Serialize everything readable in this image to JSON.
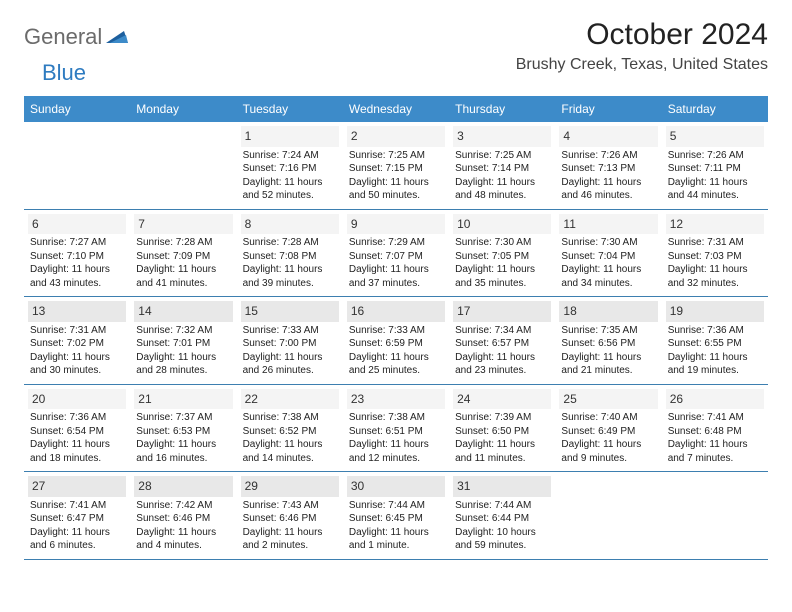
{
  "logo": {
    "text1": "General",
    "text2": "Blue"
  },
  "title": "October 2024",
  "location": "Brushy Creek, Texas, United States",
  "colors": {
    "headerBg": "#3d8bc9",
    "headerText": "#ffffff",
    "rowBorder": "#3d7fb0",
    "dayBg": "#f4f4f4",
    "dayBgAlt": "#e8e8e8",
    "logoGray": "#6b6b6b",
    "logoBlue": "#2e7bc0"
  },
  "dayNames": [
    "Sunday",
    "Monday",
    "Tuesday",
    "Wednesday",
    "Thursday",
    "Friday",
    "Saturday"
  ],
  "weeks": [
    [
      {
        "n": "",
        "sr": "",
        "ss": "",
        "dl": ""
      },
      {
        "n": "",
        "sr": "",
        "ss": "",
        "dl": ""
      },
      {
        "n": "1",
        "sr": "Sunrise: 7:24 AM",
        "ss": "Sunset: 7:16 PM",
        "dl": "Daylight: 11 hours and 52 minutes."
      },
      {
        "n": "2",
        "sr": "Sunrise: 7:25 AM",
        "ss": "Sunset: 7:15 PM",
        "dl": "Daylight: 11 hours and 50 minutes."
      },
      {
        "n": "3",
        "sr": "Sunrise: 7:25 AM",
        "ss": "Sunset: 7:14 PM",
        "dl": "Daylight: 11 hours and 48 minutes."
      },
      {
        "n": "4",
        "sr": "Sunrise: 7:26 AM",
        "ss": "Sunset: 7:13 PM",
        "dl": "Daylight: 11 hours and 46 minutes."
      },
      {
        "n": "5",
        "sr": "Sunrise: 7:26 AM",
        "ss": "Sunset: 7:11 PM",
        "dl": "Daylight: 11 hours and 44 minutes."
      }
    ],
    [
      {
        "n": "6",
        "sr": "Sunrise: 7:27 AM",
        "ss": "Sunset: 7:10 PM",
        "dl": "Daylight: 11 hours and 43 minutes."
      },
      {
        "n": "7",
        "sr": "Sunrise: 7:28 AM",
        "ss": "Sunset: 7:09 PM",
        "dl": "Daylight: 11 hours and 41 minutes."
      },
      {
        "n": "8",
        "sr": "Sunrise: 7:28 AM",
        "ss": "Sunset: 7:08 PM",
        "dl": "Daylight: 11 hours and 39 minutes."
      },
      {
        "n": "9",
        "sr": "Sunrise: 7:29 AM",
        "ss": "Sunset: 7:07 PM",
        "dl": "Daylight: 11 hours and 37 minutes."
      },
      {
        "n": "10",
        "sr": "Sunrise: 7:30 AM",
        "ss": "Sunset: 7:05 PM",
        "dl": "Daylight: 11 hours and 35 minutes."
      },
      {
        "n": "11",
        "sr": "Sunrise: 7:30 AM",
        "ss": "Sunset: 7:04 PM",
        "dl": "Daylight: 11 hours and 34 minutes."
      },
      {
        "n": "12",
        "sr": "Sunrise: 7:31 AM",
        "ss": "Sunset: 7:03 PM",
        "dl": "Daylight: 11 hours and 32 minutes."
      }
    ],
    [
      {
        "n": "13",
        "sr": "Sunrise: 7:31 AM",
        "ss": "Sunset: 7:02 PM",
        "dl": "Daylight: 11 hours and 30 minutes.",
        "shade": true
      },
      {
        "n": "14",
        "sr": "Sunrise: 7:32 AM",
        "ss": "Sunset: 7:01 PM",
        "dl": "Daylight: 11 hours and 28 minutes.",
        "shade": true
      },
      {
        "n": "15",
        "sr": "Sunrise: 7:33 AM",
        "ss": "Sunset: 7:00 PM",
        "dl": "Daylight: 11 hours and 26 minutes.",
        "shade": true
      },
      {
        "n": "16",
        "sr": "Sunrise: 7:33 AM",
        "ss": "Sunset: 6:59 PM",
        "dl": "Daylight: 11 hours and 25 minutes.",
        "shade": true
      },
      {
        "n": "17",
        "sr": "Sunrise: 7:34 AM",
        "ss": "Sunset: 6:57 PM",
        "dl": "Daylight: 11 hours and 23 minutes.",
        "shade": true
      },
      {
        "n": "18",
        "sr": "Sunrise: 7:35 AM",
        "ss": "Sunset: 6:56 PM",
        "dl": "Daylight: 11 hours and 21 minutes.",
        "shade": true
      },
      {
        "n": "19",
        "sr": "Sunrise: 7:36 AM",
        "ss": "Sunset: 6:55 PM",
        "dl": "Daylight: 11 hours and 19 minutes.",
        "shade": true
      }
    ],
    [
      {
        "n": "20",
        "sr": "Sunrise: 7:36 AM",
        "ss": "Sunset: 6:54 PM",
        "dl": "Daylight: 11 hours and 18 minutes."
      },
      {
        "n": "21",
        "sr": "Sunrise: 7:37 AM",
        "ss": "Sunset: 6:53 PM",
        "dl": "Daylight: 11 hours and 16 minutes."
      },
      {
        "n": "22",
        "sr": "Sunrise: 7:38 AM",
        "ss": "Sunset: 6:52 PM",
        "dl": "Daylight: 11 hours and 14 minutes."
      },
      {
        "n": "23",
        "sr": "Sunrise: 7:38 AM",
        "ss": "Sunset: 6:51 PM",
        "dl": "Daylight: 11 hours and 12 minutes."
      },
      {
        "n": "24",
        "sr": "Sunrise: 7:39 AM",
        "ss": "Sunset: 6:50 PM",
        "dl": "Daylight: 11 hours and 11 minutes."
      },
      {
        "n": "25",
        "sr": "Sunrise: 7:40 AM",
        "ss": "Sunset: 6:49 PM",
        "dl": "Daylight: 11 hours and 9 minutes."
      },
      {
        "n": "26",
        "sr": "Sunrise: 7:41 AM",
        "ss": "Sunset: 6:48 PM",
        "dl": "Daylight: 11 hours and 7 minutes."
      }
    ],
    [
      {
        "n": "27",
        "sr": "Sunrise: 7:41 AM",
        "ss": "Sunset: 6:47 PM",
        "dl": "Daylight: 11 hours and 6 minutes.",
        "shade": true
      },
      {
        "n": "28",
        "sr": "Sunrise: 7:42 AM",
        "ss": "Sunset: 6:46 PM",
        "dl": "Daylight: 11 hours and 4 minutes.",
        "shade": true
      },
      {
        "n": "29",
        "sr": "Sunrise: 7:43 AM",
        "ss": "Sunset: 6:46 PM",
        "dl": "Daylight: 11 hours and 2 minutes.",
        "shade": true
      },
      {
        "n": "30",
        "sr": "Sunrise: 7:44 AM",
        "ss": "Sunset: 6:45 PM",
        "dl": "Daylight: 11 hours and 1 minute.",
        "shade": true
      },
      {
        "n": "31",
        "sr": "Sunrise: 7:44 AM",
        "ss": "Sunset: 6:44 PM",
        "dl": "Daylight: 10 hours and 59 minutes.",
        "shade": true
      },
      {
        "n": "",
        "sr": "",
        "ss": "",
        "dl": ""
      },
      {
        "n": "",
        "sr": "",
        "ss": "",
        "dl": ""
      }
    ]
  ]
}
